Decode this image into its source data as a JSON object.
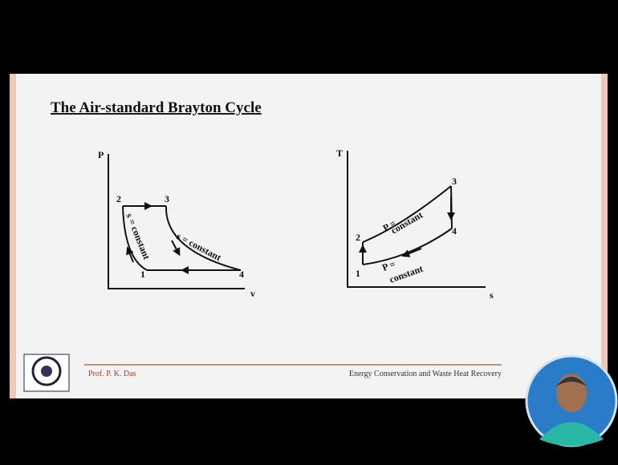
{
  "slide": {
    "title": "The Air-standard Brayton Cycle",
    "pv_diagram": {
      "y_axis": "P",
      "x_axis": "v",
      "points": [
        "1",
        "2",
        "3",
        "4"
      ],
      "labels": [
        "s = constant",
        "s = constant"
      ]
    },
    "ts_diagram": {
      "y_axis": "T",
      "x_axis": "s",
      "points": [
        "1",
        "2",
        "3",
        "4"
      ],
      "labels": [
        [
          "P =",
          "constant"
        ],
        [
          "P =",
          "constant"
        ]
      ]
    },
    "footer": {
      "author": "Prof. P. K. Das",
      "course": "Energy Conservation and Waste Heat Recovery"
    }
  }
}
